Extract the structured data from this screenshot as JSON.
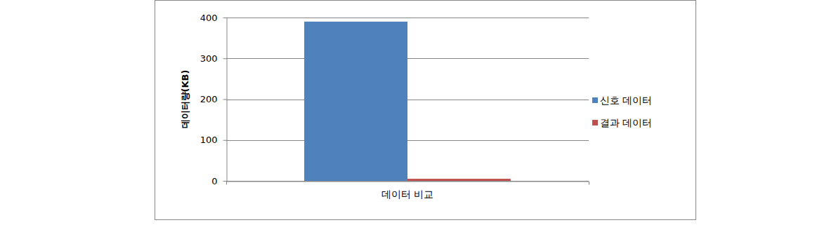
{
  "chart_data": {
    "type": "bar",
    "categories": [
      "데이터 비교"
    ],
    "series": [
      {
        "name": "신호 데이터",
        "color": "#4f81bd",
        "values": [
          390
        ]
      },
      {
        "name": "결과 데이터",
        "color": "#c0504d",
        "values": [
          5
        ]
      }
    ],
    "ylabel": "데이터량(KB)",
    "ylim": [
      0,
      400
    ],
    "yticks": [
      0,
      100,
      200,
      300,
      400
    ],
    "grid": true,
    "legend": "right"
  }
}
